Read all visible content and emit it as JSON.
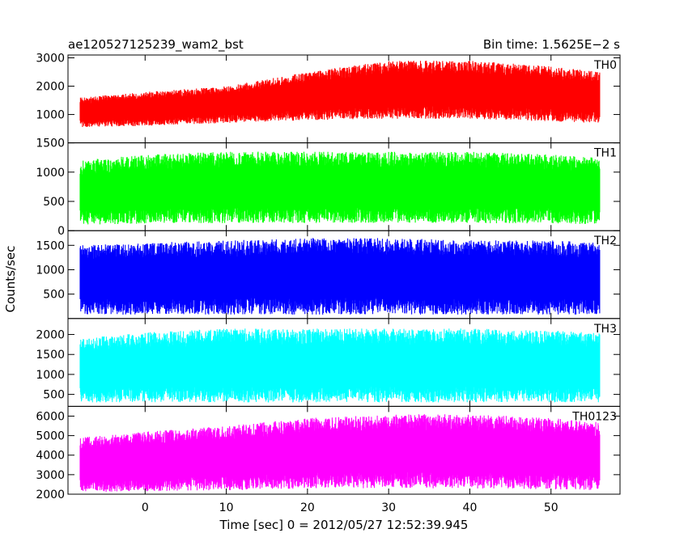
{
  "header": {
    "left_title": "ae120527125239_wam2_bst",
    "right_title": "Bin time: 1.5625E−2 s"
  },
  "chart_data": {
    "type": "line",
    "title": "ae120527125239_wam2_bst",
    "subtitle": "Bin time: 1.5625E−2 s",
    "xlabel": "Time [sec] 0 = 2012/05/27 12:52:39.945",
    "ylabel": "Counts/sec",
    "xlim": [
      -9.5,
      58.5
    ],
    "x_ticks": [
      0,
      10,
      20,
      30,
      40,
      50
    ],
    "x_tick_labels": [
      "0",
      "10",
      "20",
      "30",
      "40",
      "50"
    ],
    "data_x_range": [
      -8,
      56
    ],
    "bin_time": 0.015625,
    "grid": false,
    "series": [
      {
        "name": "TH0",
        "color": "#ff0000",
        "ylim": [
          0,
          3100
        ],
        "y_ticks": [
          1000,
          2000,
          3000
        ],
        "y_tick_labels": [
          "1000",
          "2000",
          "3000"
        ],
        "envelope_x": [
          -8,
          0,
          10,
          20,
          30,
          40,
          50,
          56
        ],
        "envelope_low": [
          550,
          600,
          700,
          800,
          850,
          850,
          750,
          700
        ],
        "envelope_high": [
          1600,
          1800,
          2000,
          2500,
          2900,
          2900,
          2700,
          2500
        ]
      },
      {
        "name": "TH1",
        "color": "#00ff00",
        "ylim": [
          0,
          1500
        ],
        "y_ticks": [
          0,
          500,
          1000,
          1500
        ],
        "y_tick_labels": [
          "0",
          "500",
          "1000",
          "1500"
        ],
        "envelope_x": [
          -8,
          0,
          10,
          20,
          30,
          40,
          50,
          56
        ],
        "envelope_low": [
          100,
          120,
          130,
          130,
          130,
          130,
          120,
          110
        ],
        "envelope_high": [
          1200,
          1300,
          1350,
          1350,
          1350,
          1350,
          1300,
          1250
        ]
      },
      {
        "name": "TH2",
        "color": "#0000ff",
        "ylim": [
          0,
          1800
        ],
        "y_ticks": [
          500,
          1000,
          1500
        ],
        "y_tick_labels": [
          "500",
          "1000",
          "1500"
        ],
        "envelope_x": [
          -8,
          0,
          10,
          20,
          30,
          40,
          50,
          56
        ],
        "envelope_low": [
          80,
          80,
          80,
          80,
          80,
          80,
          80,
          80
        ],
        "envelope_high": [
          1500,
          1550,
          1600,
          1650,
          1650,
          1600,
          1600,
          1550
        ]
      },
      {
        "name": "TH3",
        "color": "#00ffff",
        "ylim": [
          200,
          2400
        ],
        "y_ticks": [
          500,
          1000,
          1500,
          2000
        ],
        "y_tick_labels": [
          "500",
          "1000",
          "1500",
          "2000"
        ],
        "envelope_x": [
          -8,
          0,
          10,
          20,
          30,
          40,
          50,
          56
        ],
        "envelope_low": [
          300,
          300,
          300,
          300,
          300,
          300,
          300,
          300
        ],
        "envelope_high": [
          1900,
          2050,
          2150,
          2150,
          2150,
          2150,
          2100,
          2050
        ]
      },
      {
        "name": "TH0123",
        "color": "#ff00ff",
        "ylim": [
          2000,
          6500
        ],
        "y_ticks": [
          2000,
          3000,
          4000,
          5000,
          6000
        ],
        "y_tick_labels": [
          "2000",
          "3000",
          "4000",
          "5000",
          "6000"
        ],
        "envelope_x": [
          -8,
          0,
          10,
          20,
          30,
          40,
          50,
          56
        ],
        "envelope_low": [
          2100,
          2150,
          2200,
          2300,
          2300,
          2300,
          2250,
          2200
        ],
        "envelope_high": [
          4900,
          5200,
          5500,
          5900,
          6100,
          6100,
          5900,
          5700
        ]
      }
    ]
  }
}
